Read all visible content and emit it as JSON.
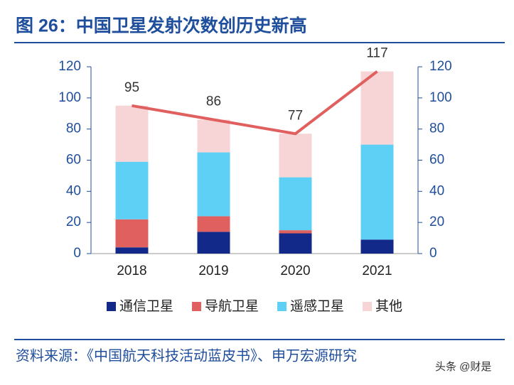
{
  "title": "图 26：中国卫星发射次数创历史新高",
  "source": "资料来源：《中国航天科技活动蓝皮书》、申万宏源研究",
  "watermark": "头条 @财是",
  "chart_data": {
    "type": "bar",
    "stacked": true,
    "categories": [
      "2018",
      "2019",
      "2020",
      "2021"
    ],
    "series": [
      {
        "name": "通信卫星",
        "color": "#12298a",
        "values": [
          4,
          14,
          13,
          9
        ]
      },
      {
        "name": "导航卫星",
        "color": "#e0605f",
        "values": [
          18,
          10,
          2,
          0
        ]
      },
      {
        "name": "遥感卫星",
        "color": "#5ed0f5",
        "values": [
          37,
          41,
          34,
          61
        ]
      },
      {
        "name": "其他",
        "color": "#f7d4d6",
        "values": [
          36,
          21,
          28,
          47
        ]
      }
    ],
    "line": {
      "type": "line",
      "color": "#e06060",
      "axis": "y2",
      "values": [
        95,
        86,
        77,
        117
      ]
    },
    "ylim": [
      0,
      120
    ],
    "yticks": [
      0,
      20,
      40,
      60,
      80,
      100,
      120
    ],
    "y2lim": [
      0,
      120
    ],
    "y2ticks": [
      0,
      20,
      40,
      60,
      80,
      100,
      120
    ],
    "legend": "bottom"
  }
}
